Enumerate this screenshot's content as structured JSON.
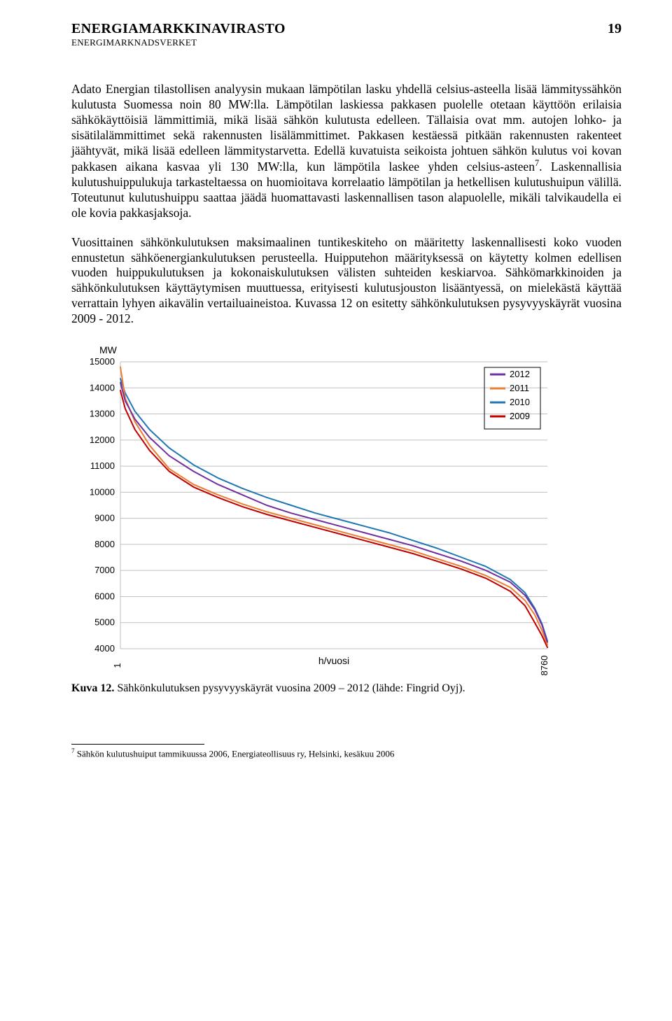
{
  "header": {
    "title": "ENERGIAMARKKINAVIRASTO",
    "subtitle": "ENERGIMARKNADSVERKET",
    "page_number": "19"
  },
  "paragraphs": {
    "p1_a": "Adato Energian tilastollisen analyysin mukaan lämpötilan lasku yhdellä celsius-asteella lisää lämmityssähkön kulutusta Suomessa noin 80 MW:lla. Lämpötilan laskiessa pakkasen puolelle otetaan käyttöön erilaisia sähkökäyttöisiä lämmittimiä, mikä lisää sähkön kulutusta edelleen. Tällaisia ovat mm. autojen lohko- ja sisätilalämmittimet sekä rakennusten lisälämmittimet. Pakkasen kestäessä pitkään rakennusten rakenteet jäähtyvät, mikä lisää edelleen lämmitystarvetta. Edellä kuvatuista seikoista johtuen sähkön kulutus voi kovan pakkasen aikana kasvaa yli 130 MW:lla, kun lämpötila laskee yhden celsius-asteen",
    "p1_b": ". Laskennallisia kulutushuippulukuja tarkasteltaessa on huomioitava korrelaatio lämpötilan ja hetkellisen kulutushuipun välillä. Toteutunut kulutushuippu saattaa jäädä huomattavasti laskennallisen tason alapuolelle, mikäli talvikaudella ei ole kovia pakkasjaksoja.",
    "p2": "Vuosittainen sähkönkulutuksen maksimaalinen tuntikeskiteho on määritetty laskennallisesti koko vuoden ennustetun sähköenergiankulutuksen perusteella. Huipputehon määrityksessä on käytetty kolmen edellisen vuoden huippukulutuksen ja kokonaiskulutuksen välisten suhteiden keskiarvoa. Sähkömarkkinoiden ja sähkönkulutuksen käyttäytymisen muuttuessa, erityisesti kulutusjouston lisääntyessä, on mielekästä käyttää verrattain lyhyen aikavälin vertailuaineistoa. Kuvassa 12 on esitetty sähkönkulutuksen pysyvyyskäyrät vuosina 2009 - 2012."
  },
  "chart": {
    "type": "line",
    "y_axis_label": "MW",
    "x_axis_label": "h/vuosi",
    "ylim": [
      4000,
      15000
    ],
    "ytick_step": 1000,
    "yticks": [
      15000,
      14000,
      13000,
      12000,
      11000,
      10000,
      9000,
      8000,
      7000,
      6000,
      5000,
      4000
    ],
    "xlim": [
      1,
      8760
    ],
    "xtick_labels": [
      "1",
      "8760"
    ],
    "background_color": "#ffffff",
    "grid_color": "#bfbfbf",
    "line_width": 2,
    "series": [
      {
        "name": "2012",
        "color": "#7030a0",
        "points": [
          [
            1,
            14200
          ],
          [
            100,
            13500
          ],
          [
            300,
            12800
          ],
          [
            600,
            12100
          ],
          [
            1000,
            11400
          ],
          [
            1500,
            10800
          ],
          [
            2000,
            10300
          ],
          [
            2500,
            9900
          ],
          [
            3000,
            9500
          ],
          [
            3500,
            9200
          ],
          [
            4000,
            8950
          ],
          [
            4500,
            8700
          ],
          [
            5000,
            8450
          ],
          [
            5500,
            8200
          ],
          [
            6000,
            7950
          ],
          [
            6500,
            7650
          ],
          [
            7000,
            7350
          ],
          [
            7500,
            7000
          ],
          [
            8000,
            6550
          ],
          [
            8300,
            6050
          ],
          [
            8500,
            5500
          ],
          [
            8650,
            4900
          ],
          [
            8760,
            4250
          ]
        ]
      },
      {
        "name": "2011",
        "color": "#ed7d31",
        "points": [
          [
            1,
            14800
          ],
          [
            100,
            13600
          ],
          [
            300,
            12700
          ],
          [
            600,
            11800
          ],
          [
            1000,
            10900
          ],
          [
            1500,
            10300
          ],
          [
            2000,
            9900
          ],
          [
            2500,
            9550
          ],
          [
            3000,
            9250
          ],
          [
            3500,
            9000
          ],
          [
            4000,
            8750
          ],
          [
            4500,
            8500
          ],
          [
            5000,
            8250
          ],
          [
            5500,
            8000
          ],
          [
            6000,
            7750
          ],
          [
            6500,
            7450
          ],
          [
            7000,
            7150
          ],
          [
            7500,
            6800
          ],
          [
            8000,
            6350
          ],
          [
            8300,
            5850
          ],
          [
            8500,
            5300
          ],
          [
            8650,
            4700
          ],
          [
            8760,
            4150
          ]
        ]
      },
      {
        "name": "2010",
        "color": "#1f77b4",
        "points": [
          [
            1,
            14350
          ],
          [
            100,
            13800
          ],
          [
            300,
            13100
          ],
          [
            600,
            12400
          ],
          [
            1000,
            11700
          ],
          [
            1500,
            11050
          ],
          [
            2000,
            10550
          ],
          [
            2500,
            10150
          ],
          [
            3000,
            9800
          ],
          [
            3500,
            9500
          ],
          [
            4000,
            9200
          ],
          [
            4500,
            8950
          ],
          [
            5000,
            8700
          ],
          [
            5500,
            8450
          ],
          [
            6000,
            8150
          ],
          [
            6500,
            7850
          ],
          [
            7000,
            7500
          ],
          [
            7500,
            7150
          ],
          [
            8000,
            6650
          ],
          [
            8300,
            6150
          ],
          [
            8500,
            5550
          ],
          [
            8650,
            4950
          ],
          [
            8760,
            4300
          ]
        ]
      },
      {
        "name": "2009",
        "color": "#c00000",
        "points": [
          [
            1,
            13900
          ],
          [
            100,
            13200
          ],
          [
            300,
            12400
          ],
          [
            600,
            11600
          ],
          [
            1000,
            10800
          ],
          [
            1500,
            10200
          ],
          [
            2000,
            9800
          ],
          [
            2500,
            9450
          ],
          [
            3000,
            9150
          ],
          [
            3500,
            8900
          ],
          [
            4000,
            8650
          ],
          [
            4500,
            8400
          ],
          [
            5000,
            8150
          ],
          [
            5500,
            7900
          ],
          [
            6000,
            7650
          ],
          [
            6500,
            7350
          ],
          [
            7000,
            7050
          ],
          [
            7500,
            6700
          ],
          [
            8000,
            6200
          ],
          [
            8300,
            5650
          ],
          [
            8500,
            5000
          ],
          [
            8650,
            4500
          ],
          [
            8760,
            4050
          ]
        ]
      }
    ],
    "legend_position": "top-right"
  },
  "caption": {
    "label": "Kuva 12.",
    "text": " Sähkönkulutuksen pysyvyyskäyrät vuosina 2009 – 2012 (lähde: Fingrid Oyj)."
  },
  "footnote": {
    "marker": "7",
    "text": " Sähkön kulutushuiput tammikuussa 2006, Energiateollisuus ry, Helsinki, kesäkuu 2006"
  }
}
